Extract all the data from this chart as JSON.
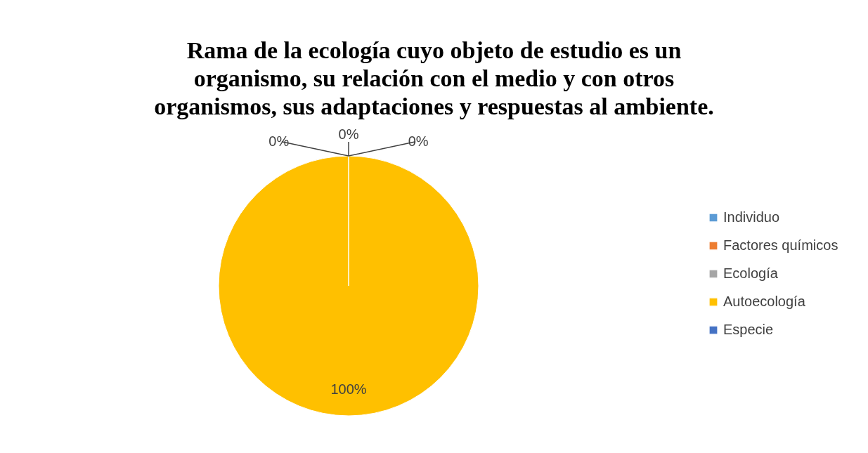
{
  "chart_data": {
    "type": "pie",
    "title": "Rama de la ecología cuyo objeto de estudio es un organismo, su relación con el medio y con otros organismos, sus adaptaciones y respuestas al ambiente.",
    "categories": [
      "Individuo",
      "Factores químicos",
      "Ecología",
      "Autoecología",
      "Especie"
    ],
    "values": [
      0,
      0,
      0,
      100,
      0
    ],
    "colors": [
      "#5b9bd5",
      "#ed7d31",
      "#a5a5a5",
      "#ffc000",
      "#4472c4"
    ],
    "value_labels": [
      "0%",
      "0%",
      "0%",
      "100%",
      null
    ],
    "legend": "right"
  }
}
